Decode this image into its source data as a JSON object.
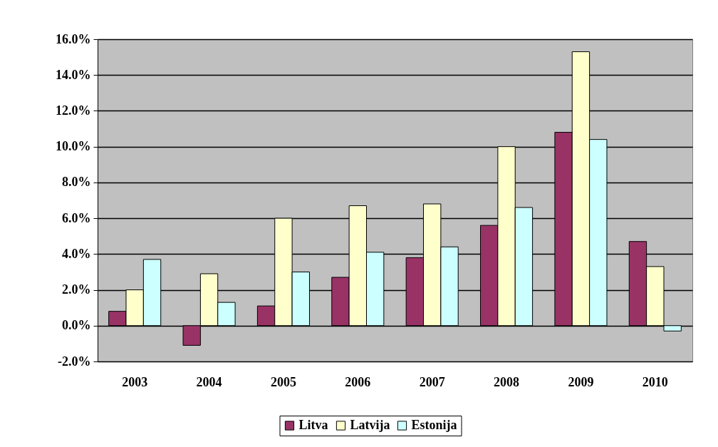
{
  "chart_data": {
    "type": "bar",
    "categories": [
      "2003",
      "2004",
      "2005",
      "2006",
      "2007",
      "2008",
      "2009",
      "2010"
    ],
    "series": [
      {
        "name": "Litva",
        "color": "#993366",
        "values": [
          0.8,
          -1.1,
          1.1,
          2.7,
          3.8,
          5.6,
          10.8,
          4.7
        ]
      },
      {
        "name": "Latvija",
        "color": "#ffffcc",
        "values": [
          2.0,
          2.9,
          6.0,
          6.7,
          6.8,
          10.0,
          15.3,
          3.3
        ]
      },
      {
        "name": "Estonija",
        "color": "#ccffff",
        "values": [
          3.7,
          1.3,
          3.0,
          4.1,
          4.4,
          6.6,
          10.4,
          -0.3
        ]
      }
    ],
    "ylim": [
      -2,
      16
    ],
    "yticks": [
      {
        "value": -2,
        "label": "-2.0%"
      },
      {
        "value": 0,
        "label": "0.0%"
      },
      {
        "value": 2,
        "label": "2.0%"
      },
      {
        "value": 4,
        "label": "4.0%"
      },
      {
        "value": 6,
        "label": "6.0%"
      },
      {
        "value": 8,
        "label": "8.0%"
      },
      {
        "value": 10,
        "label": "10.0%"
      },
      {
        "value": 12,
        "label": "12.0%"
      },
      {
        "value": 14,
        "label": "14.0%"
      },
      {
        "value": 16,
        "label": "16.0%"
      }
    ],
    "grid": "y",
    "legend": "bottom"
  }
}
